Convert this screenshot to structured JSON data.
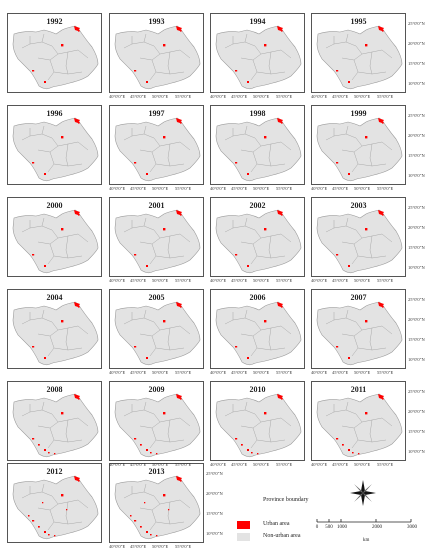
{
  "map": {
    "panels": [
      {
        "year": "1992"
      },
      {
        "year": "1993"
      },
      {
        "year": "1994"
      },
      {
        "year": "1995"
      },
      {
        "year": "1996"
      },
      {
        "year": "1997"
      },
      {
        "year": "1998"
      },
      {
        "year": "1999"
      },
      {
        "year": "2000"
      },
      {
        "year": "2001"
      },
      {
        "year": "2002"
      },
      {
        "year": "2003"
      },
      {
        "year": "2004"
      },
      {
        "year": "2005"
      },
      {
        "year": "2006"
      },
      {
        "year": "2007"
      },
      {
        "year": "2008"
      },
      {
        "year": "2009"
      },
      {
        "year": "2010"
      },
      {
        "year": "2011"
      },
      {
        "year": "2012"
      },
      {
        "year": "2013"
      }
    ],
    "lon_labels": [
      "40°0'0\"E",
      "45°0'0\"E",
      "50°0'0\"E",
      "55°0'0\"E"
    ],
    "lat_labels": [
      "25°0'0\"N",
      "20°0'0\"N",
      "15°0'0\"N",
      "10°0'0\"N"
    ],
    "colors": {
      "land": "#e3e3e3",
      "boundary": "#9a9a9a",
      "urban": "#ff0000",
      "frame": "#555555"
    }
  },
  "legend": {
    "title": "Province boundary",
    "items": [
      {
        "label": "Urban area",
        "color": "#ff0000"
      },
      {
        "label": "Non-urban area",
        "color": "#e3e3e3"
      }
    ]
  },
  "north_arrow": {
    "icon": "compass-rose-icon"
  },
  "scale_bar": {
    "ticks": [
      "0",
      "500",
      "1000",
      "2000",
      "3000"
    ],
    "unit": "km"
  }
}
